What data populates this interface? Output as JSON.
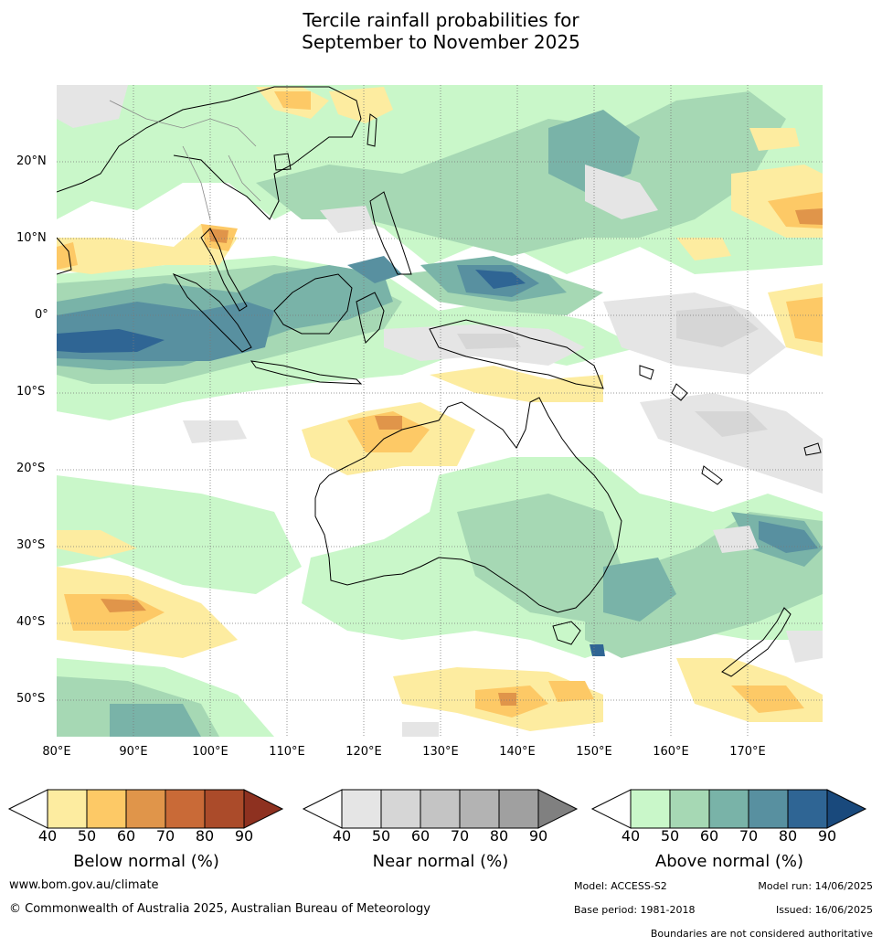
{
  "title_line1": "Tercile rainfall probabilities for",
  "title_line2": "September to November 2025",
  "lat_labels": [
    "20°N",
    "10°N",
    "0°",
    "10°S",
    "20°S",
    "30°S",
    "40°S",
    "50°S"
  ],
  "lon_labels": [
    "80°E",
    "90°E",
    "100°E",
    "110°E",
    "120°E",
    "130°E",
    "140°E",
    "150°E",
    "160°E",
    "170°E"
  ],
  "colorbars": [
    {
      "title": "Below normal (%)",
      "ticks": [
        "40",
        "50",
        "60",
        "70",
        "80",
        "90"
      ],
      "colors": [
        "#ffffff",
        "#fdeca0",
        "#fdc966",
        "#e0954a",
        "#c96a37",
        "#ab4b2a",
        "#8e3120"
      ]
    },
    {
      "title": "Near normal (%)",
      "ticks": [
        "40",
        "50",
        "60",
        "70",
        "80",
        "90"
      ],
      "colors": [
        "#ffffff",
        "#e5e5e5",
        "#d6d6d6",
        "#c4c4c4",
        "#b3b3b3",
        "#a0a0a0",
        "#808080"
      ]
    },
    {
      "title": "Above normal (%)",
      "ticks": [
        "40",
        "50",
        "60",
        "70",
        "80",
        "90"
      ],
      "colors": [
        "#ffffff",
        "#c9f7c9",
        "#a6d8b4",
        "#79b3a8",
        "#5890a0",
        "#2f6594",
        "#19497c"
      ]
    }
  ],
  "footer": {
    "url": "www.bom.gov.au/climate",
    "copyright": "© Commonwealth of Australia 2025, Australian Bureau of Meteorology",
    "model": "Model: ACCESS-S2",
    "model_run": "Model run: 14/06/2025",
    "base_period": "Base period: 1981-2018",
    "issued": "Issued: 16/06/2025",
    "disclaimer": "Boundaries are not considered authoritative"
  }
}
